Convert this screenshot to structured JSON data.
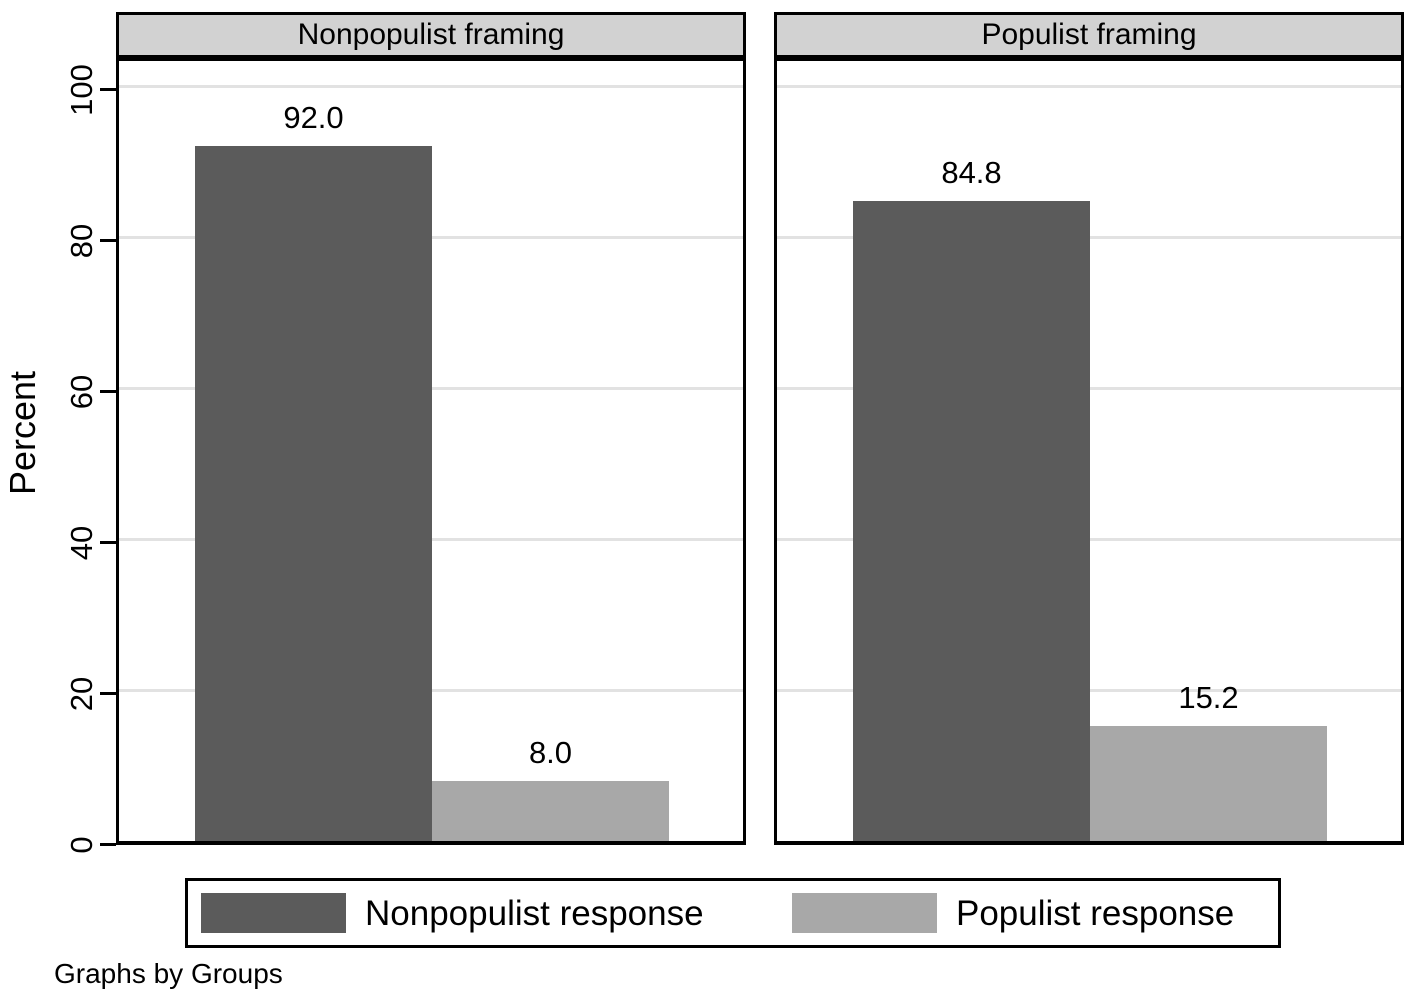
{
  "figure": {
    "ylabel": "Percent",
    "note": "Graphs by Groups",
    "y_ticks": [
      0,
      20,
      40,
      60,
      80,
      100
    ],
    "colors": {
      "dark": "#5b5b5b",
      "light": "#a8a8a8",
      "header_bg": "#d2d2d2",
      "grid": "#e2e2e2",
      "axis": "#000000"
    }
  },
  "legend": {
    "items": [
      {
        "label": "Nonpopulist response",
        "color_key": "dark"
      },
      {
        "label": "Populist response",
        "color_key": "light"
      }
    ]
  },
  "chart_data": [
    {
      "type": "bar",
      "title": "Nonpopulist framing",
      "categories": [
        "Nonpopulist response",
        "Populist response"
      ],
      "values": [
        92.0,
        8.0
      ],
      "value_labels": [
        "92.0",
        "8.0"
      ],
      "ylabel": "Percent",
      "ylim": [
        0,
        100
      ],
      "grid": true,
      "legend_position": "bottom"
    },
    {
      "type": "bar",
      "title": "Populist framing",
      "categories": [
        "Nonpopulist response",
        "Populist response"
      ],
      "values": [
        84.8,
        15.2
      ],
      "value_labels": [
        "84.8",
        "15.2"
      ],
      "ylabel": "Percent",
      "ylim": [
        0,
        100
      ],
      "grid": true,
      "legend_position": "bottom"
    }
  ]
}
